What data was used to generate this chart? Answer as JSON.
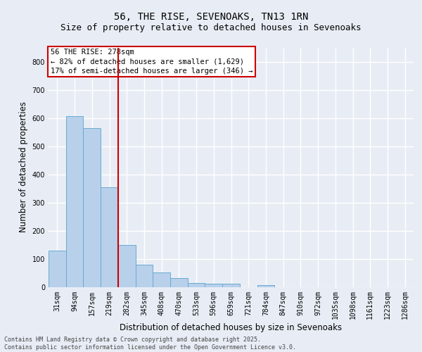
{
  "title_line1": "56, THE RISE, SEVENOAKS, TN13 1RN",
  "title_line2": "Size of property relative to detached houses in Sevenoaks",
  "xlabel": "Distribution of detached houses by size in Sevenoaks",
  "ylabel": "Number of detached properties",
  "categories": [
    "31sqm",
    "94sqm",
    "157sqm",
    "219sqm",
    "282sqm",
    "345sqm",
    "408sqm",
    "470sqm",
    "533sqm",
    "596sqm",
    "659sqm",
    "721sqm",
    "784sqm",
    "847sqm",
    "910sqm",
    "972sqm",
    "1035sqm",
    "1098sqm",
    "1161sqm",
    "1223sqm",
    "1286sqm"
  ],
  "values": [
    130,
    607,
    565,
    355,
    150,
    78,
    52,
    32,
    14,
    12,
    12,
    0,
    7,
    0,
    0,
    0,
    0,
    0,
    0,
    0,
    0
  ],
  "bar_color": "#b8d0ea",
  "bar_edge_color": "#6aaad4",
  "vline_color": "#cc0000",
  "annotation_text": "56 THE RISE: 278sqm\n← 82% of detached houses are smaller (1,629)\n17% of semi-detached houses are larger (346) →",
  "annotation_box_color": "#ffffff",
  "annotation_box_edge_color": "#cc0000",
  "ylim": [
    0,
    850
  ],
  "yticks": [
    0,
    100,
    200,
    300,
    400,
    500,
    600,
    700,
    800
  ],
  "background_color": "#e8edf5",
  "plot_bg_color": "#e8edf5",
  "grid_color": "#ffffff",
  "footer_text": "Contains HM Land Registry data © Crown copyright and database right 2025.\nContains public sector information licensed under the Open Government Licence v3.0.",
  "title_fontsize": 10,
  "subtitle_fontsize": 9,
  "tick_fontsize": 7,
  "ylabel_fontsize": 8.5,
  "xlabel_fontsize": 8.5,
  "annotation_fontsize": 7.5
}
